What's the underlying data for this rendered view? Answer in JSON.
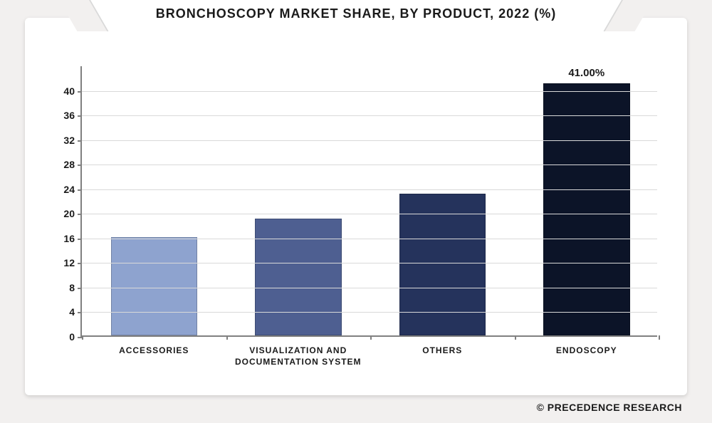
{
  "title": "BRONCHOSCOPY MARKET SHARE, BY PRODUCT, 2022 (%)",
  "attribution": "© PRECEDENCE RESEARCH",
  "chart": {
    "type": "bar",
    "background_color": "#ffffff",
    "page_background_color": "#f2f0ef",
    "grid_color": "#d9d9d9",
    "axis_color": "#808080",
    "title_fontsize": 18,
    "tick_fontsize": 14,
    "category_fontsize": 12,
    "ylim_min": 0,
    "ylim_max": 44,
    "ytick_step": 4,
    "y_ticks": [
      "0",
      "4",
      "8",
      "12",
      "16",
      "20",
      "24",
      "28",
      "32",
      "36",
      "40"
    ],
    "bar_width_relative": 0.6,
    "categories": [
      {
        "label": "ACCESSORIES",
        "value": 16,
        "color": "#8ea3cf",
        "data_label": ""
      },
      {
        "label": "VISUALIZATION AND\nDOCUMENTATION SYSTEM",
        "value": 19,
        "color": "#4e5f91",
        "data_label": ""
      },
      {
        "label": "OTHERS",
        "value": 23,
        "color": "#25335c",
        "data_label": ""
      },
      {
        "label": "ENDOSCOPY",
        "value": 41,
        "color": "#0c1428",
        "data_label": "41.00%"
      }
    ]
  }
}
